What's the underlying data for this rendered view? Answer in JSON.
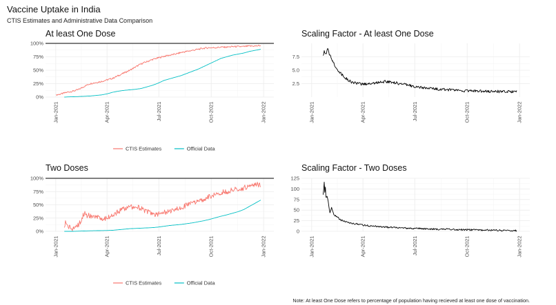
{
  "title": "Vaccine Uptake in India",
  "subtitle": "CTIS Estimates and Administrative Data Comparison",
  "note": "Note: At least One Dose refers to percentage of population having recieved at least one dose of vaccination.",
  "colors": {
    "ctis": "#f8766d",
    "official": "#00bfc4",
    "scaling": "#000000",
    "grid": "#ebebeb",
    "hundred_line": "#333333"
  },
  "x_tick_labels": [
    "Jan-2021",
    "Apr-2021",
    "Jul-2021",
    "Oct-2021",
    "Jan-2022"
  ],
  "x_tick_days": [
    0,
    90,
    181,
    273,
    365
  ],
  "chart_data": [
    {
      "type": "line",
      "title": "At least One Dose",
      "ylim": [
        0,
        100
      ],
      "y_ticks": [
        0,
        25,
        50,
        75,
        100
      ],
      "y_tick_labels": [
        "0%",
        "25%",
        "50%",
        "75%",
        "100%"
      ],
      "hline": 100,
      "legend": [
        "CTIS Estimates",
        "Official Data"
      ],
      "x_unit": "days since 2021-01-01",
      "series": [
        {
          "name": "CTIS Estimates",
          "color_key": "ctis",
          "noise": 1.5,
          "x": [
            1,
            10,
            20,
            30,
            40,
            50,
            60,
            70,
            80,
            90,
            100,
            110,
            120,
            130,
            140,
            150,
            160,
            170,
            180,
            190,
            200,
            210,
            220,
            230,
            240,
            250,
            260,
            270,
            280,
            290,
            300,
            310,
            320,
            330,
            340,
            350,
            360
          ],
          "values": [
            4,
            6,
            9,
            11,
            14,
            20,
            25,
            27,
            29,
            32,
            35,
            40,
            45,
            50,
            56,
            62,
            66,
            70,
            73,
            76,
            78,
            80,
            83,
            85,
            87,
            89,
            91,
            92,
            92,
            93,
            93,
            94,
            94,
            94,
            95,
            95,
            96
          ]
        },
        {
          "name": "Official Data",
          "color_key": "official",
          "noise": 0,
          "x": [
            15,
            20,
            30,
            40,
            50,
            60,
            70,
            80,
            90,
            100,
            110,
            120,
            130,
            140,
            150,
            160,
            170,
            180,
            190,
            200,
            210,
            220,
            230,
            240,
            250,
            260,
            270,
            280,
            290,
            300,
            310,
            320,
            330,
            340,
            350,
            360
          ],
          "values": [
            0,
            0.3,
            0.6,
            1,
            1.5,
            2,
            3,
            4,
            6,
            9,
            11,
            12.5,
            13.5,
            14.5,
            16,
            19,
            22,
            26,
            31,
            34,
            37,
            40,
            44,
            48,
            52,
            57,
            62,
            67,
            72,
            75,
            78,
            80,
            82,
            85,
            87,
            89
          ]
        }
      ]
    },
    {
      "type": "line",
      "title": "Scaling Factor - At least One Dose",
      "ylim": [
        0,
        10
      ],
      "y_ticks": [
        2.5,
        5.0,
        7.5
      ],
      "y_tick_labels": [
        "2.5",
        "5.0",
        "7.5"
      ],
      "legend": [],
      "x_unit": "days since 2021-01-01",
      "series": [
        {
          "name": "Scaling Factor",
          "color_key": "scaling",
          "noise": 0.25,
          "x": [
            20,
            22,
            25,
            28,
            30,
            32,
            35,
            38,
            40,
            45,
            50,
            55,
            60,
            65,
            70,
            80,
            90,
            100,
            110,
            120,
            130,
            140,
            150,
            160,
            170,
            180,
            190,
            200,
            220,
            240,
            260,
            280,
            300,
            320,
            340,
            360
          ],
          "values": [
            7.5,
            8.5,
            7.8,
            9.0,
            8.3,
            7.8,
            7.0,
            6.5,
            6.0,
            5.2,
            4.5,
            4.0,
            3.5,
            3.1,
            2.8,
            2.5,
            2.4,
            2.5,
            2.6,
            2.8,
            2.9,
            2.8,
            2.6,
            2.4,
            2.2,
            2.0,
            1.8,
            1.7,
            1.5,
            1.35,
            1.2,
            1.15,
            1.1,
            1.05,
            1.0,
            1.0
          ]
        }
      ]
    },
    {
      "type": "line",
      "title": "Two Doses",
      "ylim": [
        0,
        100
      ],
      "y_ticks": [
        0,
        25,
        50,
        75,
        100
      ],
      "y_tick_labels": [
        "0%",
        "25%",
        "50%",
        "75%",
        "100%"
      ],
      "hline": 100,
      "legend": [
        "CTIS Estimates",
        "Official Data"
      ],
      "x_unit": "days since 2021-01-01",
      "series": [
        {
          "name": "CTIS Estimates",
          "color_key": "ctis",
          "noise": 5,
          "x": [
            15,
            17,
            20,
            25,
            30,
            35,
            40,
            45,
            50,
            55,
            60,
            65,
            70,
            80,
            90,
            100,
            110,
            120,
            130,
            140,
            150,
            160,
            170,
            180,
            190,
            200,
            210,
            220,
            230,
            240,
            250,
            260,
            270,
            280,
            290,
            300,
            310,
            320,
            330,
            340,
            350,
            360
          ],
          "values": [
            5,
            18,
            10,
            7,
            6,
            8,
            12,
            22,
            35,
            30,
            30,
            25,
            26,
            25,
            25,
            30,
            37,
            43,
            46,
            47,
            43,
            37,
            33,
            33,
            35,
            38,
            42,
            46,
            49,
            53,
            57,
            61,
            66,
            70,
            73,
            75,
            78,
            80,
            82,
            85,
            87,
            89
          ]
        },
        {
          "name": "Official Data",
          "color_key": "official",
          "noise": 0,
          "x": [
            15,
            30,
            45,
            60,
            75,
            90,
            100,
            110,
            120,
            130,
            140,
            150,
            160,
            170,
            180,
            190,
            200,
            210,
            220,
            230,
            240,
            250,
            260,
            270,
            280,
            290,
            300,
            310,
            320,
            330,
            340,
            350,
            360
          ],
          "values": [
            0,
            0,
            0.5,
            1,
            1.3,
            1.6,
            2,
            3,
            4,
            5,
            5.5,
            6,
            6.5,
            7,
            8,
            9.5,
            11,
            12,
            13,
            14.5,
            16,
            18,
            20,
            22.5,
            25.5,
            28.5,
            31,
            34,
            37,
            41,
            47,
            53,
            59
          ]
        }
      ]
    },
    {
      "type": "line",
      "title": "Scaling Factor - Two Doses",
      "ylim": [
        0,
        125
      ],
      "y_ticks": [
        0,
        25,
        50,
        75,
        100,
        125
      ],
      "y_tick_labels": [
        "0",
        "25",
        "50",
        "75",
        "100",
        "125"
      ],
      "legend": [],
      "x_unit": "days since 2021-01-01",
      "series": [
        {
          "name": "Scaling Factor",
          "color_key": "scaling",
          "noise": 2,
          "x": [
            20,
            21,
            22,
            23,
            24,
            25,
            27,
            29,
            30,
            32,
            35,
            38,
            40,
            45,
            50,
            55,
            60,
            70,
            80,
            90,
            100,
            120,
            140,
            160,
            180,
            200,
            220,
            240,
            260,
            280,
            300,
            320,
            340,
            360
          ],
          "values": [
            85,
            100,
            118,
            90,
            105,
            80,
            82,
            70,
            60,
            45,
            55,
            42,
            38,
            33,
            28,
            24,
            22,
            19,
            17,
            15,
            13,
            11,
            9,
            8,
            7,
            6,
            5,
            4.5,
            4,
            3.5,
            3,
            2.5,
            2,
            1.5
          ]
        }
      ]
    }
  ]
}
